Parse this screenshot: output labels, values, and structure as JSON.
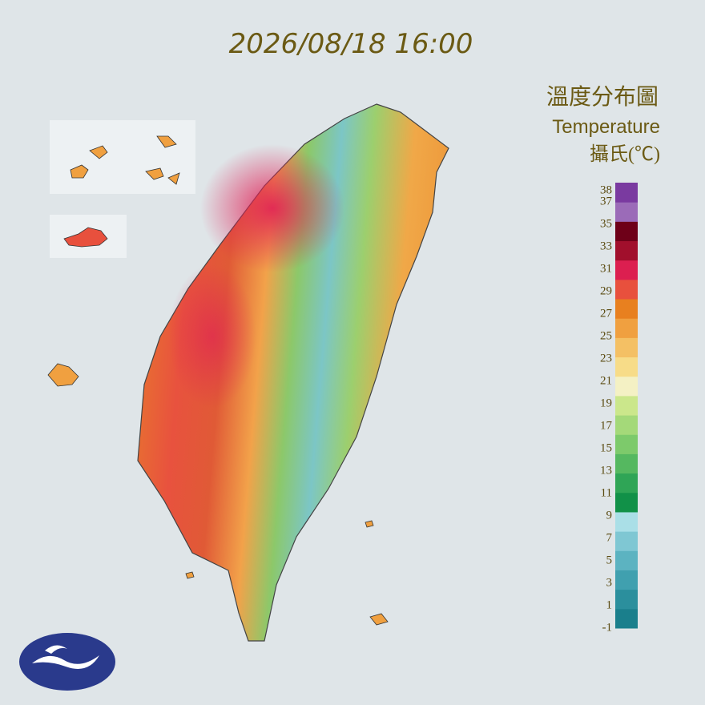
{
  "timestamp": "2026/08/18 16:00",
  "legend": {
    "title_zh": "溫度分布圖",
    "title_en": "Temperature",
    "unit": "攝氏(℃)",
    "ticks": [
      38,
      37,
      35,
      33,
      31,
      29,
      27,
      25,
      23,
      21,
      19,
      17,
      15,
      13,
      11,
      9,
      7,
      5,
      3,
      1,
      -1
    ],
    "colors": [
      "#1a7f8c",
      "#2b8f9d",
      "#40a0af",
      "#5cb3c1",
      "#7fc7d3",
      "#aadfe7",
      "#119148",
      "#2fa556",
      "#55b860",
      "#7dca6b",
      "#a4d979",
      "#cbe78b",
      "#f4f1c4",
      "#f7dc88",
      "#f4c064",
      "#f0a040",
      "#e8801f",
      "#e8503d",
      "#dc1f50",
      "#a10f2c",
      "#6e0018",
      "#9b6bb8",
      "#7a3aa0"
    ]
  }
}
